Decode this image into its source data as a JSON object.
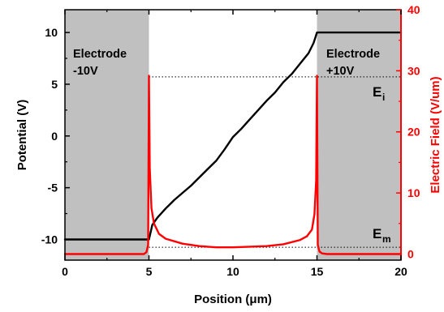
{
  "chart_data": {
    "type": "line",
    "xlabel": "Position (μm)",
    "ylabel_left": "Potential (V)",
    "ylabel_right": "Electric Field (V/um)",
    "xlim": [
      0,
      20
    ],
    "ylim_left": [
      -12.0,
      12.2
    ],
    "ylim_right": [
      -1.0,
      40.0
    ],
    "x_ticks": [
      0,
      5,
      10,
      15,
      20
    ],
    "y_left_ticks": [
      -10,
      -5,
      0,
      5,
      10
    ],
    "y_right_ticks": [
      0,
      10,
      20,
      30,
      40
    ],
    "shaded_regions": [
      {
        "x_start": 0,
        "x_end": 5,
        "label_line1": "Electrode",
        "label_line2": "-10V"
      },
      {
        "x_start": 15,
        "x_end": 20,
        "label_line1": "Electrode",
        "label_line2": "+10V"
      }
    ],
    "reference_lines": [
      {
        "label": "E",
        "subscript": "i",
        "y_field": 29.0,
        "x_start": 5,
        "x_end": 20
      },
      {
        "label": "E",
        "subscript": "m",
        "y_field": 1.1,
        "x_start": 5,
        "x_end": 20
      }
    ],
    "series": [
      {
        "name": "Potential",
        "axis": "left",
        "color": "#000000",
        "x": [
          0,
          5.0,
          5.2,
          5.5,
          6.0,
          6.5,
          7.0,
          7.5,
          8.0,
          8.5,
          9.0,
          9.5,
          10.0,
          10.5,
          11.0,
          11.5,
          12.0,
          12.5,
          13.0,
          13.5,
          14.0,
          14.5,
          14.8,
          15.0,
          20
        ],
        "y": [
          -10,
          -10,
          -8.6,
          -7.9,
          -7.0,
          -6.2,
          -5.5,
          -4.8,
          -4.0,
          -3.2,
          -2.4,
          -1.3,
          -0.1,
          0.7,
          1.6,
          2.5,
          3.4,
          4.2,
          5.2,
          6.0,
          7.0,
          8.0,
          9.0,
          10,
          10
        ]
      },
      {
        "name": "Electric Field",
        "axis": "right",
        "color": "#ff0000",
        "x": [
          0,
          4.7,
          4.85,
          4.95,
          5.0,
          5.05,
          5.15,
          5.3,
          5.6,
          6.0,
          7.0,
          8.0,
          9.0,
          10.0,
          11.0,
          12.0,
          13.0,
          14.0,
          14.4,
          14.7,
          14.85,
          14.95,
          15.0,
          15.05,
          15.15,
          15.3,
          15.6,
          20
        ],
        "y": [
          0,
          0,
          0.3,
          1.5,
          29.2,
          14.0,
          7.5,
          5.0,
          3.3,
          2.5,
          1.7,
          1.3,
          1.1,
          1.1,
          1.2,
          1.3,
          1.6,
          2.3,
          2.9,
          4.0,
          6.5,
          12.0,
          29.2,
          1.5,
          0.4,
          0.1,
          0,
          0
        ]
      }
    ]
  }
}
